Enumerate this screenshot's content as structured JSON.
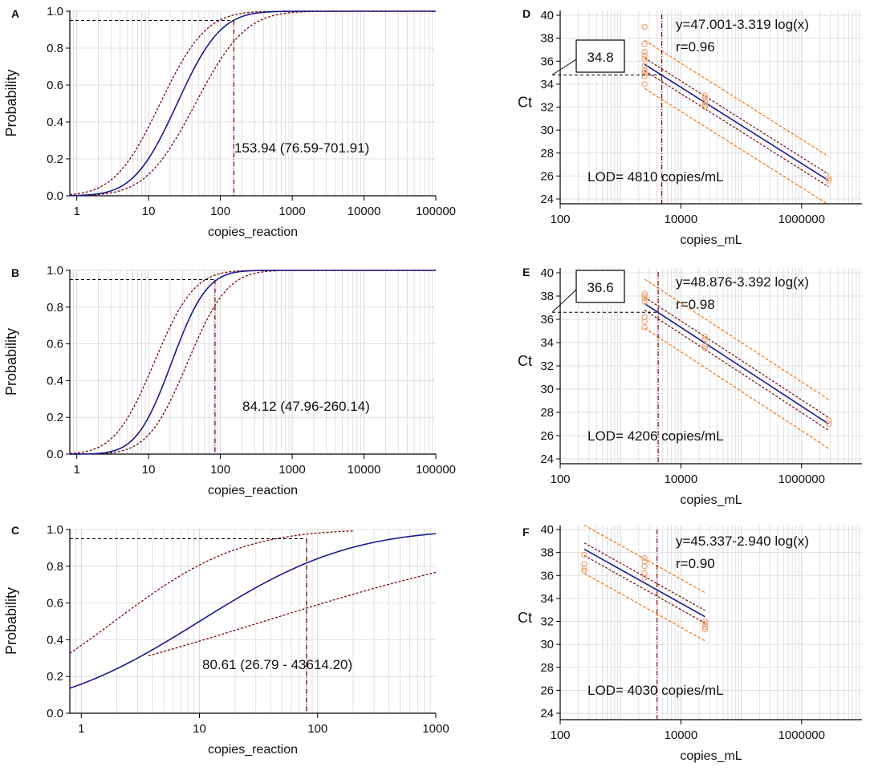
{
  "colors": {
    "curve": "#1a1a8c",
    "ci": "#7a0a0a",
    "point": "#f0a070",
    "pred": "#f07a1a",
    "grid": "#d9d9d9",
    "axis": "#000000"
  },
  "chart_data": [
    {
      "panel": "A",
      "type": "line",
      "subtype": "probit",
      "xlabel": "copies_reaction",
      "ylabel": "Probability",
      "xscale": "log",
      "xlim": [
        0.8,
        100000
      ],
      "ylim": [
        0,
        1.0
      ],
      "xticks": [
        "1",
        "10",
        "100",
        "1000",
        "10000",
        "100000"
      ],
      "yticks": [
        "0.0",
        "0.2",
        "0.4",
        "0.6",
        "0.8",
        "1.0"
      ],
      "curve": {
        "midpoint": 25,
        "slope": 2.1
      },
      "ci_lower": {
        "midpoint": 45,
        "slope": 1.83
      },
      "ci_upper": {
        "midpoint": 14.5,
        "slope": 2.0
      },
      "target_probability": 0.95,
      "lod": 153.94,
      "annotation": "153.94 (76.59-701.91)"
    },
    {
      "panel": "B",
      "type": "line",
      "subtype": "probit",
      "xlabel": "copies_reaction",
      "ylabel": "Probability",
      "xscale": "log",
      "xlim": [
        0.8,
        100000
      ],
      "ylim": [
        0,
        1.0
      ],
      "xticks": [
        "1",
        "10",
        "100",
        "1000",
        "10000",
        "100000"
      ],
      "yticks": [
        "0.0",
        "0.2",
        "0.4",
        "0.6",
        "0.8",
        "1.0"
      ],
      "curve": {
        "midpoint": 21,
        "slope": 2.6
      },
      "ci_lower": {
        "midpoint": 35,
        "slope": 2.3
      },
      "ci_upper": {
        "midpoint": 12,
        "slope": 2.3
      },
      "target_probability": 0.95,
      "lod": 84.12,
      "annotation": "84.12 (47.96-260.14)"
    },
    {
      "panel": "C",
      "type": "line",
      "subtype": "probit",
      "xlabel": "copies_reaction",
      "ylabel": "Probability",
      "xscale": "log",
      "xlim": [
        0.8,
        1000
      ],
      "ylim": [
        0,
        1.0
      ],
      "xticks": [
        "1",
        "10",
        "100",
        "1000"
      ],
      "yticks": [
        "0.0",
        "0.2",
        "0.4",
        "0.6",
        "0.8",
        "1.0"
      ],
      "curve": {
        "midpoint": 10,
        "slope": 1.0
      },
      "ci_lower": {
        "midpoint": 35,
        "slope": 0.5,
        "xmin": 3.7
      },
      "ci_upper": {
        "midpoint": 1.9,
        "slope": 1.2,
        "xmax": 200
      },
      "target_probability": 0.95,
      "lod": 80.61,
      "annotation": "80.61 (26.79 - 43614.20)"
    },
    {
      "panel": "D",
      "type": "scatter",
      "subtype": "regression",
      "xlabel": "copies_mL",
      "ylabel": "Ct",
      "xscale": "log",
      "xlim": [
        100,
        10000000
      ],
      "ylim": [
        24,
        40
      ],
      "xticks": [
        "100",
        "10000",
        "1000000"
      ],
      "yticks": [
        "24",
        "26",
        "28",
        "30",
        "32",
        "34",
        "36",
        "38",
        "40"
      ],
      "intercept": 47.001,
      "slope": -3.319,
      "equation": "y=47.001-3.319 log(x)",
      "r_text": "r=0.96",
      "lod": 4810,
      "lod_text": "LOD= 4810 copies/mL",
      "ct_at_lod": "34.8",
      "fit_range": [
        2500,
        2800000
      ],
      "points": [
        {
          "x": 2500,
          "y": 39.0
        },
        {
          "x": 2500,
          "y": 37.5
        },
        {
          "x": 2500,
          "y": 36.8
        },
        {
          "x": 2500,
          "y": 36.5
        },
        {
          "x": 2500,
          "y": 36.2
        },
        {
          "x": 2500,
          "y": 35.6
        },
        {
          "x": 2500,
          "y": 35.2
        },
        {
          "x": 2500,
          "y": 35.0
        },
        {
          "x": 2500,
          "y": 34.7
        },
        {
          "x": 2500,
          "y": 34.0
        },
        {
          "x": 25000,
          "y": 33.0
        },
        {
          "x": 25000,
          "y": 32.8
        },
        {
          "x": 25000,
          "y": 32.5
        },
        {
          "x": 25000,
          "y": 32.2
        },
        {
          "x": 25000,
          "y": 32.0
        },
        {
          "x": 2800000,
          "y": 25.8
        },
        {
          "x": 2800000,
          "y": 25.6
        }
      ]
    },
    {
      "panel": "E",
      "type": "scatter",
      "subtype": "regression",
      "xlabel": "copies_mL",
      "ylabel": "Ct",
      "xscale": "log",
      "xlim": [
        100,
        10000000
      ],
      "ylim": [
        24,
        40
      ],
      "xticks": [
        "100",
        "10000",
        "1000000"
      ],
      "yticks": [
        "24",
        "26",
        "28",
        "30",
        "32",
        "34",
        "36",
        "38",
        "40"
      ],
      "intercept": 48.876,
      "slope": -3.392,
      "equation": "y=48.876-3.392 log(x)",
      "r_text": "r=0.98",
      "lod": 4206,
      "lod_text": "LOD= 4206 copies/mL",
      "ct_at_lod": "36.6",
      "fit_range": [
        2500,
        2800000
      ],
      "points": [
        {
          "x": 2500,
          "y": 38.2
        },
        {
          "x": 2500,
          "y": 38.0
        },
        {
          "x": 2500,
          "y": 37.8
        },
        {
          "x": 2500,
          "y": 37.5
        },
        {
          "x": 2500,
          "y": 36.2
        },
        {
          "x": 2500,
          "y": 35.8
        },
        {
          "x": 2500,
          "y": 35.3
        },
        {
          "x": 25000,
          "y": 34.5
        },
        {
          "x": 25000,
          "y": 34.3
        },
        {
          "x": 25000,
          "y": 33.7
        },
        {
          "x": 25000,
          "y": 33.5
        },
        {
          "x": 2800000,
          "y": 27.3
        },
        {
          "x": 2800000,
          "y": 27.0
        }
      ]
    },
    {
      "panel": "F",
      "type": "scatter",
      "subtype": "regression",
      "xlabel": "copies_mL",
      "ylabel": "Ct",
      "xscale": "log",
      "xlim": [
        100,
        10000000
      ],
      "ylim": [
        24,
        40
      ],
      "xticks": [
        "100",
        "10000",
        "1000000"
      ],
      "yticks": [
        "24",
        "26",
        "28",
        "30",
        "32",
        "34",
        "36",
        "38",
        "40"
      ],
      "intercept": 45.337,
      "slope": -2.94,
      "equation": "y=45.337-2.940 log(x)",
      "r_text": "r=0.90",
      "lod": 4030,
      "lod_text": "LOD= 4030 copies/mL",
      "fit_range": [
        250,
        25000
      ],
      "points": [
        {
          "x": 250,
          "y": 37.8
        },
        {
          "x": 250,
          "y": 37.0
        },
        {
          "x": 250,
          "y": 36.6
        },
        {
          "x": 250,
          "y": 36.4
        },
        {
          "x": 2500,
          "y": 37.5
        },
        {
          "x": 2500,
          "y": 37.2
        },
        {
          "x": 2500,
          "y": 36.8
        },
        {
          "x": 2500,
          "y": 36.2
        },
        {
          "x": 2500,
          "y": 35.8
        },
        {
          "x": 25000,
          "y": 32.0
        },
        {
          "x": 25000,
          "y": 31.8
        },
        {
          "x": 25000,
          "y": 31.5
        },
        {
          "x": 25000,
          "y": 31.3
        }
      ]
    }
  ]
}
